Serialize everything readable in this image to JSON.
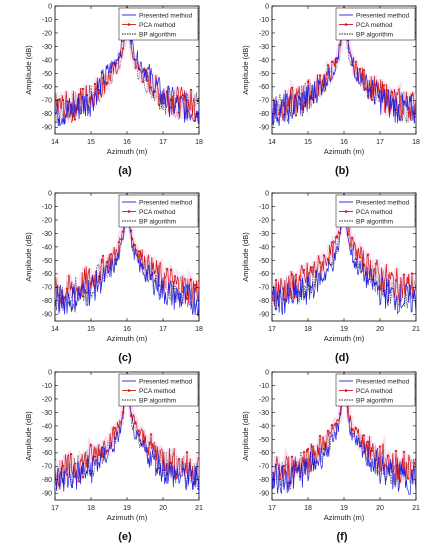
{
  "colors": {
    "presented": "#1f1fe0",
    "pca": "#d01818",
    "bp": "#222222",
    "halo": "#f6c6ea"
  },
  "chart_data": [
    {
      "id": "a",
      "caption": "(a)",
      "type": "line",
      "xlabel": "Azimuth (m)",
      "ylabel": "Amplitude (dB)",
      "xlim": [
        14,
        18
      ],
      "ylim": [
        -95,
        0
      ],
      "xticks": [
        "14",
        "15",
        "16",
        "17",
        "18"
      ],
      "yticks": [
        "0",
        "-10",
        "-20",
        "-30",
        "-40",
        "-50",
        "-60",
        "-70",
        "-80",
        "-90"
      ],
      "legend": "top-right",
      "series": [
        {
          "name": "Presented method",
          "x": [
            14,
            14.5,
            15,
            15.4,
            15.7,
            15.85,
            15.95,
            16,
            16.05,
            16.15,
            16.3,
            16.6,
            17,
            17.5,
            18
          ],
          "values": [
            -80,
            -77,
            -70,
            -52,
            -40,
            -30,
            -15,
            0,
            -15,
            -30,
            -40,
            -50,
            -68,
            -75,
            -78
          ]
        },
        {
          "name": "PCA method",
          "x": [
            14,
            14.5,
            15,
            15.4,
            15.7,
            15.85,
            15.95,
            16,
            16.05,
            16.15,
            16.3,
            16.6,
            17,
            17.5,
            18
          ],
          "values": [
            -76,
            -74,
            -66,
            -56,
            -46,
            -36,
            -20,
            0,
            -20,
            -36,
            -46,
            -56,
            -66,
            -72,
            -74
          ]
        },
        {
          "name": "BP algorithm",
          "x": [
            14,
            14.5,
            15,
            15.4,
            15.7,
            15.85,
            15.95,
            16,
            16.05,
            16.15,
            16.3,
            16.6,
            17,
            17.5,
            18
          ],
          "values": [
            -78,
            -76,
            -68,
            -58,
            -48,
            -38,
            -22,
            0,
            -22,
            -38,
            -48,
            -58,
            -68,
            -74,
            -76
          ]
        }
      ]
    },
    {
      "id": "b",
      "caption": "(b)",
      "type": "line",
      "xlabel": "Azimuth (m)",
      "ylabel": "Amplitude (dB)",
      "xlim": [
        14,
        18
      ],
      "ylim": [
        -95,
        0
      ],
      "xticks": [
        "14",
        "15",
        "16",
        "17",
        "18"
      ],
      "yticks": [
        "0",
        "-10",
        "-20",
        "-30",
        "-40",
        "-50",
        "-60",
        "-70",
        "-80",
        "-90"
      ],
      "legend": "top-right",
      "series": [
        {
          "name": "Presented method",
          "x": [
            14,
            14.5,
            15,
            15.4,
            15.7,
            15.85,
            15.95,
            16,
            16.05,
            16.15,
            16.3,
            16.6,
            17,
            17.5,
            18
          ],
          "values": [
            -78,
            -76,
            -69,
            -58,
            -48,
            -36,
            -18,
            0,
            -18,
            -36,
            -48,
            -58,
            -69,
            -76,
            -78
          ]
        },
        {
          "name": "PCA method",
          "x": [
            14,
            14.5,
            15,
            15.4,
            15.7,
            15.85,
            15.95,
            16,
            16.05,
            16.15,
            16.3,
            16.6,
            17,
            17.5,
            18
          ],
          "values": [
            -75,
            -73,
            -66,
            -56,
            -46,
            -36,
            -20,
            0,
            -20,
            -36,
            -46,
            -56,
            -66,
            -72,
            -74
          ]
        },
        {
          "name": "BP algorithm",
          "x": [
            14,
            14.5,
            15,
            15.4,
            15.7,
            15.85,
            15.95,
            16,
            16.05,
            16.15,
            16.3,
            16.6,
            17,
            17.5,
            18
          ],
          "values": [
            -77,
            -75,
            -68,
            -58,
            -48,
            -38,
            -22,
            0,
            -22,
            -38,
            -48,
            -58,
            -68,
            -74,
            -76
          ]
        }
      ]
    },
    {
      "id": "c",
      "caption": "(c)",
      "type": "line",
      "xlabel": "Azimuth (m)",
      "ylabel": "Amplitude (dB)",
      "xlim": [
        14,
        18
      ],
      "ylim": [
        -95,
        0
      ],
      "xticks": [
        "14",
        "15",
        "16",
        "17",
        "18"
      ],
      "yticks": [
        "0",
        "-10",
        "-20",
        "-30",
        "-40",
        "-50",
        "-60",
        "-70",
        "-80",
        "-90"
      ],
      "legend": "top-right",
      "series": [
        {
          "name": "Presented method",
          "x": [
            14,
            14.5,
            15,
            15.4,
            15.7,
            15.85,
            15.95,
            16,
            16.05,
            16.15,
            16.3,
            16.6,
            17,
            17.5,
            18
          ],
          "values": [
            -80,
            -78,
            -72,
            -62,
            -52,
            -40,
            -20,
            0,
            -20,
            -40,
            -52,
            -62,
            -72,
            -78,
            -80
          ]
        },
        {
          "name": "PCA method",
          "x": [
            14,
            14.5,
            15,
            15.4,
            15.7,
            15.85,
            15.95,
            16,
            16.05,
            16.15,
            16.3,
            16.6,
            17,
            17.5,
            18
          ],
          "values": [
            -74,
            -72,
            -64,
            -54,
            -44,
            -34,
            -18,
            0,
            -18,
            -34,
            -44,
            -54,
            -64,
            -70,
            -72
          ]
        },
        {
          "name": "BP algorithm",
          "x": [
            14,
            14.5,
            15,
            15.4,
            15.7,
            15.85,
            15.95,
            16,
            16.05,
            16.15,
            16.3,
            16.6,
            17,
            17.5,
            18
          ],
          "values": [
            -77,
            -75,
            -68,
            -58,
            -48,
            -38,
            -22,
            0,
            -22,
            -38,
            -48,
            -58,
            -68,
            -74,
            -76
          ]
        }
      ]
    },
    {
      "id": "d",
      "caption": "(d)",
      "type": "line",
      "xlabel": "Azimuth (m)",
      "ylabel": "Amplitude (dB)",
      "xlim": [
        17,
        21
      ],
      "ylim": [
        -95,
        0
      ],
      "xticks": [
        "17",
        "18",
        "19",
        "20",
        "21"
      ],
      "yticks": [
        "0",
        "-10",
        "-20",
        "-30",
        "-40",
        "-50",
        "-60",
        "-70",
        "-80",
        "-90"
      ],
      "legend": "top-right",
      "series": [
        {
          "name": "Presented method",
          "x": [
            17,
            17.5,
            18,
            18.4,
            18.7,
            18.85,
            18.95,
            19,
            19.05,
            19.15,
            19.3,
            19.6,
            20,
            20.5,
            21
          ],
          "values": [
            -80,
            -78,
            -72,
            -62,
            -52,
            -40,
            -20,
            0,
            -20,
            -40,
            -52,
            -62,
            -72,
            -78,
            -80
          ]
        },
        {
          "name": "PCA method",
          "x": [
            17,
            17.5,
            18,
            18.4,
            18.7,
            18.85,
            18.95,
            19,
            19.05,
            19.15,
            19.3,
            19.6,
            20,
            20.5,
            21
          ],
          "values": [
            -72,
            -70,
            -62,
            -52,
            -42,
            -32,
            -18,
            0,
            -18,
            -32,
            -42,
            -52,
            -62,
            -68,
            -70
          ]
        },
        {
          "name": "BP algorithm",
          "x": [
            17,
            17.5,
            18,
            18.4,
            18.7,
            18.85,
            18.95,
            19,
            19.05,
            19.15,
            19.3,
            19.6,
            20,
            20.5,
            21
          ],
          "values": [
            -76,
            -74,
            -67,
            -57,
            -47,
            -37,
            -21,
            0,
            -21,
            -37,
            -47,
            -57,
            -67,
            -73,
            -75
          ]
        }
      ]
    },
    {
      "id": "e",
      "caption": "(e)",
      "type": "line",
      "xlabel": "Azimuth (m)",
      "ylabel": "Amplitude (dB)",
      "xlim": [
        17,
        21
      ],
      "ylim": [
        -95,
        0
      ],
      "xticks": [
        "17",
        "18",
        "19",
        "20",
        "21"
      ],
      "yticks": [
        "0",
        "-10",
        "-20",
        "-30",
        "-40",
        "-50",
        "-60",
        "-70",
        "-80",
        "-90"
      ],
      "legend": "top-right",
      "series": [
        {
          "name": "Presented method",
          "x": [
            17,
            17.5,
            18,
            18.4,
            18.7,
            18.85,
            18.95,
            19,
            19.05,
            19.15,
            19.3,
            19.6,
            20,
            20.5,
            21
          ],
          "values": [
            -80,
            -78,
            -72,
            -62,
            -52,
            -40,
            -20,
            0,
            -20,
            -40,
            -52,
            -62,
            -72,
            -78,
            -80
          ]
        },
        {
          "name": "PCA method",
          "x": [
            17,
            17.5,
            18,
            18.4,
            18.7,
            18.85,
            18.95,
            19,
            19.05,
            19.15,
            19.3,
            19.6,
            20,
            20.5,
            21
          ],
          "values": [
            -74,
            -72,
            -64,
            -54,
            -44,
            -34,
            -18,
            0,
            -18,
            -34,
            -44,
            -54,
            -64,
            -70,
            -72
          ]
        },
        {
          "name": "BP algorithm",
          "x": [
            17,
            17.5,
            18,
            18.4,
            18.7,
            18.85,
            18.95,
            19,
            19.05,
            19.15,
            19.3,
            19.6,
            20,
            20.5,
            21
          ],
          "values": [
            -77,
            -75,
            -68,
            -58,
            -48,
            -38,
            -22,
            0,
            -22,
            -38,
            -48,
            -58,
            -68,
            -74,
            -76
          ]
        }
      ]
    },
    {
      "id": "f",
      "caption": "(f)",
      "type": "line",
      "xlabel": "Azimuth (m)",
      "ylabel": "Amplitude (dB)",
      "xlim": [
        17,
        21
      ],
      "ylim": [
        -95,
        0
      ],
      "xticks": [
        "17",
        "18",
        "19",
        "20",
        "21"
      ],
      "yticks": [
        "0",
        "-10",
        "-20",
        "-30",
        "-40",
        "-50",
        "-60",
        "-70",
        "-80",
        "-90"
      ],
      "legend": "top-right",
      "series": [
        {
          "name": "Presented method",
          "x": [
            17,
            17.5,
            18,
            18.4,
            18.7,
            18.85,
            18.95,
            19,
            19.05,
            19.15,
            19.3,
            19.6,
            20,
            20.5,
            21
          ],
          "values": [
            -80,
            -78,
            -72,
            -62,
            -52,
            -40,
            -20,
            0,
            -20,
            -40,
            -52,
            -62,
            -72,
            -78,
            -80
          ]
        },
        {
          "name": "PCA method",
          "x": [
            17,
            17.5,
            18,
            18.4,
            18.7,
            18.85,
            18.95,
            19,
            19.05,
            19.15,
            19.3,
            19.6,
            20,
            20.5,
            21
          ],
          "values": [
            -74,
            -72,
            -64,
            -54,
            -44,
            -34,
            -18,
            0,
            -18,
            -34,
            -44,
            -54,
            -64,
            -70,
            -72
          ]
        },
        {
          "name": "BP algorithm",
          "x": [
            17,
            17.5,
            18,
            18.4,
            18.7,
            18.85,
            18.95,
            19,
            19.05,
            19.15,
            19.3,
            19.6,
            20,
            20.5,
            21
          ],
          "values": [
            -77,
            -75,
            -68,
            -58,
            -48,
            -38,
            -22,
            0,
            -22,
            -38,
            -48,
            -58,
            -68,
            -74,
            -76
          ]
        }
      ]
    }
  ]
}
